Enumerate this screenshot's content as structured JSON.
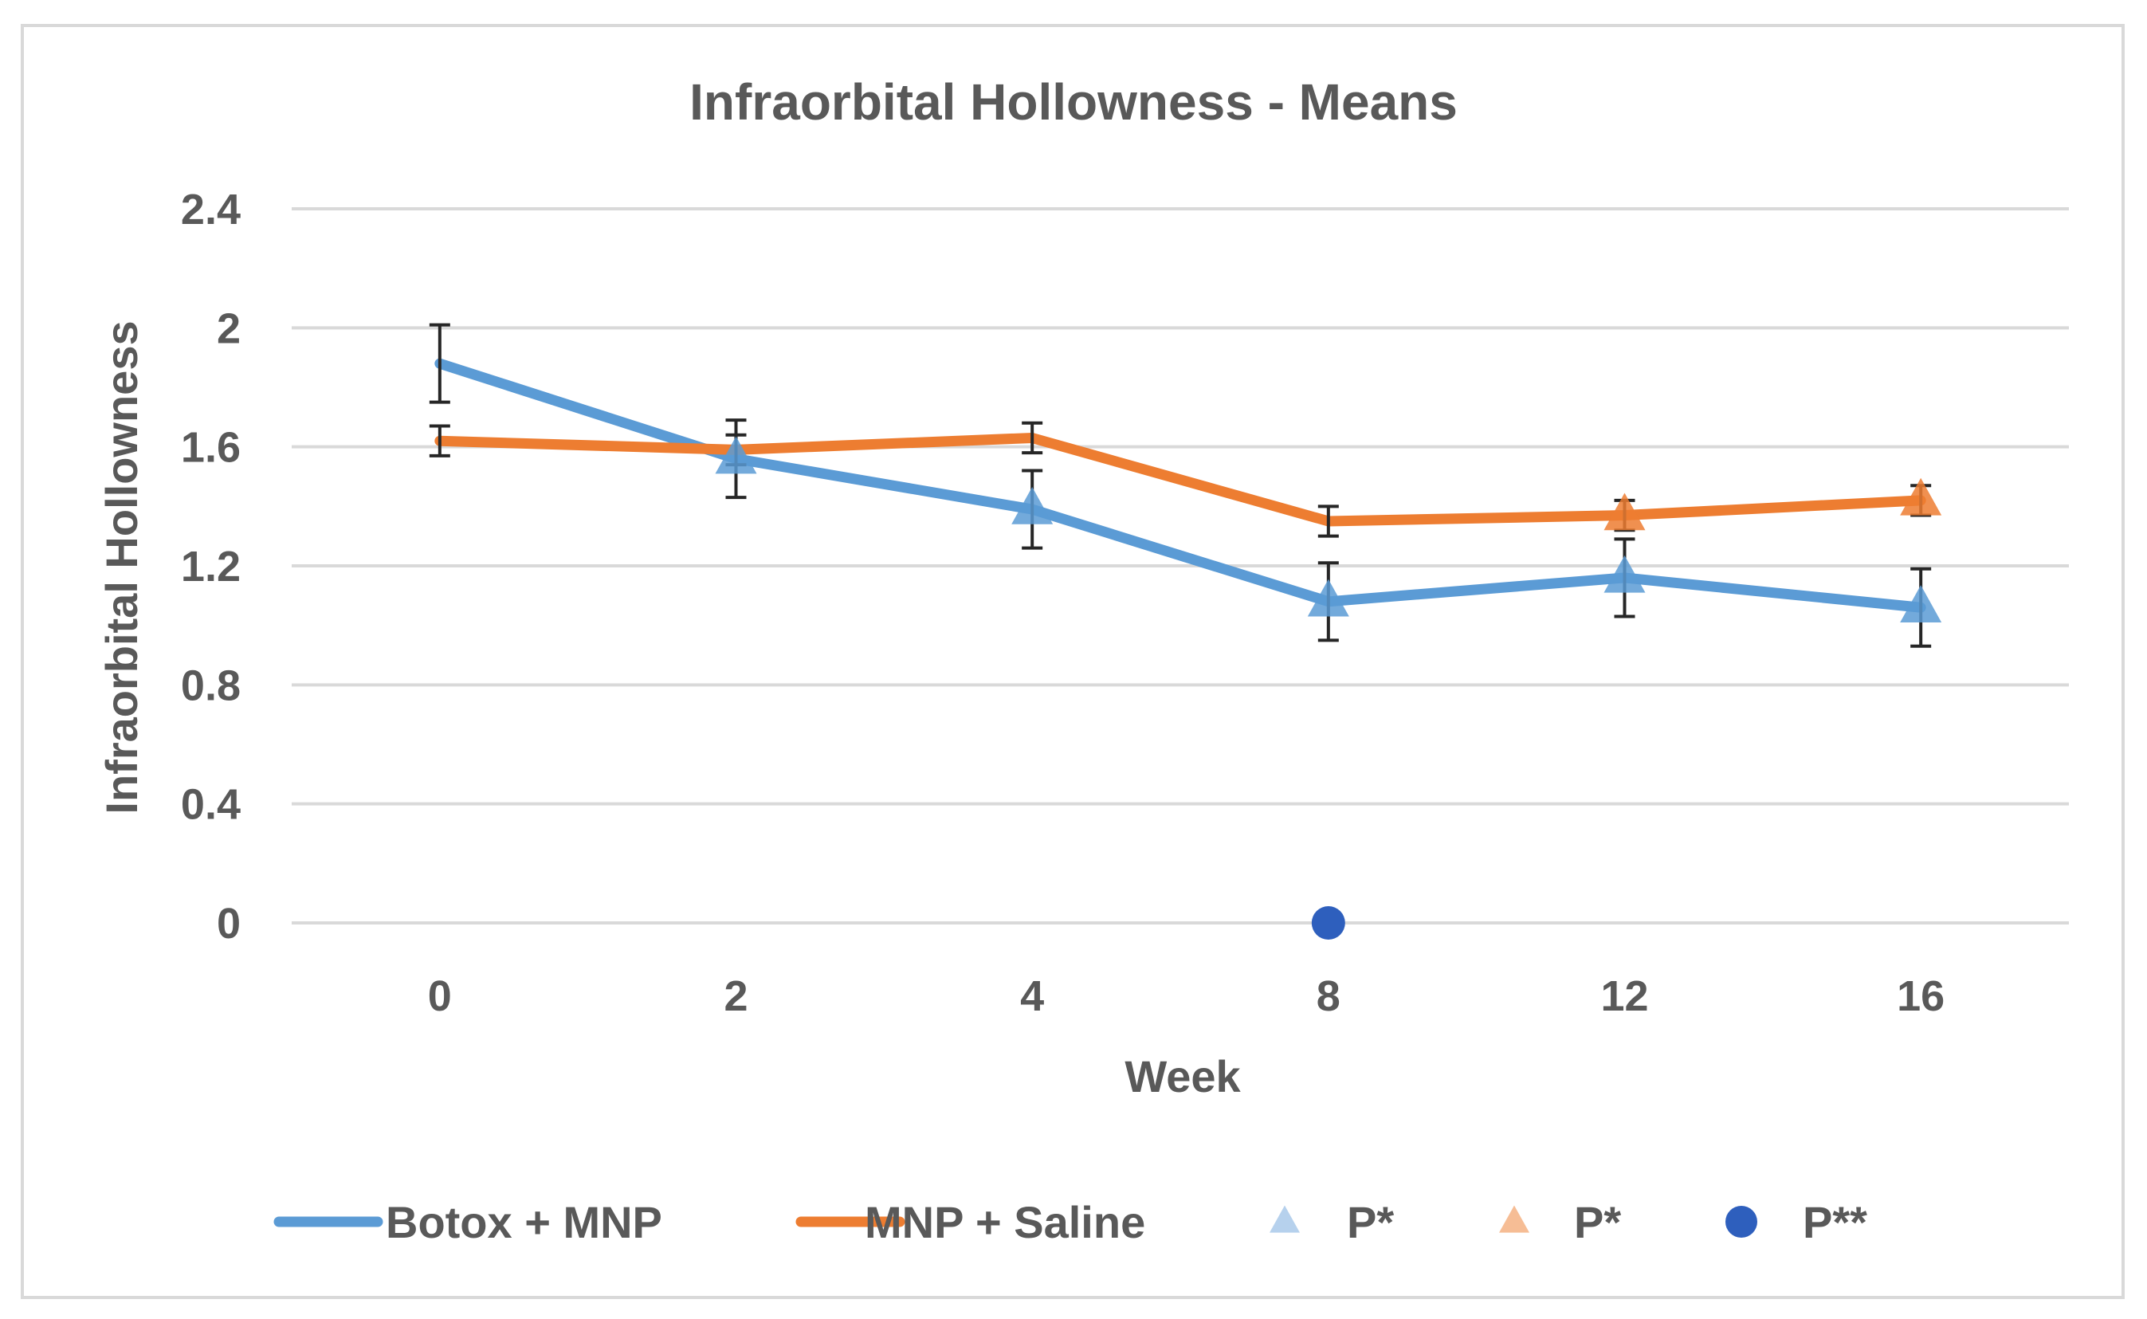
{
  "chart_data": {
    "type": "line",
    "title": "Infraorbital Hollowness - Means",
    "xlabel": "Week",
    "ylabel": "Infraorbital Hollowness",
    "categories": [
      "0",
      "2",
      "4",
      "8",
      "12",
      "16"
    ],
    "y_ticks": [
      "0",
      "0.4",
      "0.8",
      "1.2",
      "1.6",
      "2",
      "2.4"
    ],
    "ylim": [
      0,
      2.4
    ],
    "grid": true,
    "legend_position": "bottom",
    "series": [
      {
        "name": "Botox + MNP",
        "color": "#5b9bd5",
        "values": [
          1.88,
          1.56,
          1.39,
          1.08,
          1.16,
          1.06
        ],
        "error": [
          0.13,
          0.13,
          0.13,
          0.13,
          0.13,
          0.13
        ]
      },
      {
        "name": "MNP + Saline",
        "color": "#ed7d31",
        "values": [
          1.62,
          1.59,
          1.63,
          1.35,
          1.37,
          1.42
        ],
        "error": [
          0.05,
          0.05,
          0.05,
          0.05,
          0.05,
          0.05
        ]
      }
    ],
    "markers": [
      {
        "name": "P*",
        "color": "#5b9bd5",
        "shape": "triangle",
        "points": [
          [
            2,
            1.56
          ],
          [
            4,
            1.39
          ],
          [
            8,
            1.08
          ],
          [
            12,
            1.16
          ],
          [
            16,
            1.06
          ]
        ]
      },
      {
        "name": "P*",
        "color": "#ed7d31",
        "shape": "triangle",
        "points": [
          [
            12,
            1.37
          ],
          [
            16,
            1.42
          ]
        ]
      },
      {
        "name": "P**",
        "color": "#2e5fbd",
        "shape": "circle",
        "points": [
          [
            8,
            0
          ]
        ]
      }
    ],
    "legend": [
      {
        "label": "Botox + MNP",
        "kind": "line",
        "color": "#5b9bd5"
      },
      {
        "label": "MNP + Saline",
        "kind": "line",
        "color": "#ed7d31"
      },
      {
        "label": "P*",
        "kind": "triangle",
        "color": "#a9c9ea"
      },
      {
        "label": "P*",
        "kind": "triangle",
        "color": "#f4b183"
      },
      {
        "label": "P**",
        "kind": "circle",
        "color": "#2e5fbd"
      }
    ]
  }
}
